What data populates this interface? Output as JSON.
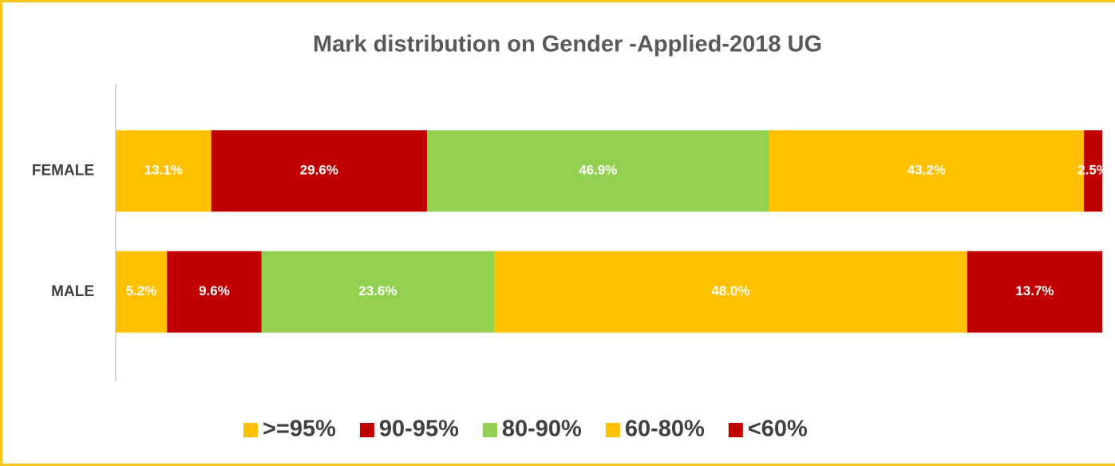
{
  "chart_data": {
    "type": "bar",
    "orientation": "horizontal",
    "stacking": "percent",
    "title": "Mark distribution on Gender -Applied-2018 UG",
    "categories": [
      "FEMALE",
      "MALE"
    ],
    "series": [
      {
        "name": ">=95%",
        "color": "#FFC000",
        "values": [
          13.1,
          5.2
        ],
        "value_labels": [
          "13.1%",
          "5.2%"
        ]
      },
      {
        "name": "90-95%",
        "color": "#C00000",
        "values": [
          29.6,
          9.6
        ],
        "value_labels": [
          "29.6%",
          "9.6%"
        ]
      },
      {
        "name": "80-90%",
        "color": "#92D050",
        "values": [
          46.9,
          23.6
        ],
        "value_labels": [
          "46.9%",
          "23.6%"
        ]
      },
      {
        "name": "60-80%",
        "color": "#FFC000",
        "values": [
          43.2,
          48.0
        ],
        "value_labels": [
          "43.2%",
          "48.0%"
        ]
      },
      {
        "name": "<60%",
        "color": "#C00000",
        "values": [
          2.5,
          13.7
        ],
        "value_labels": [
          "2.5%",
          "13.7%"
        ]
      }
    ],
    "legend": "bottom"
  }
}
